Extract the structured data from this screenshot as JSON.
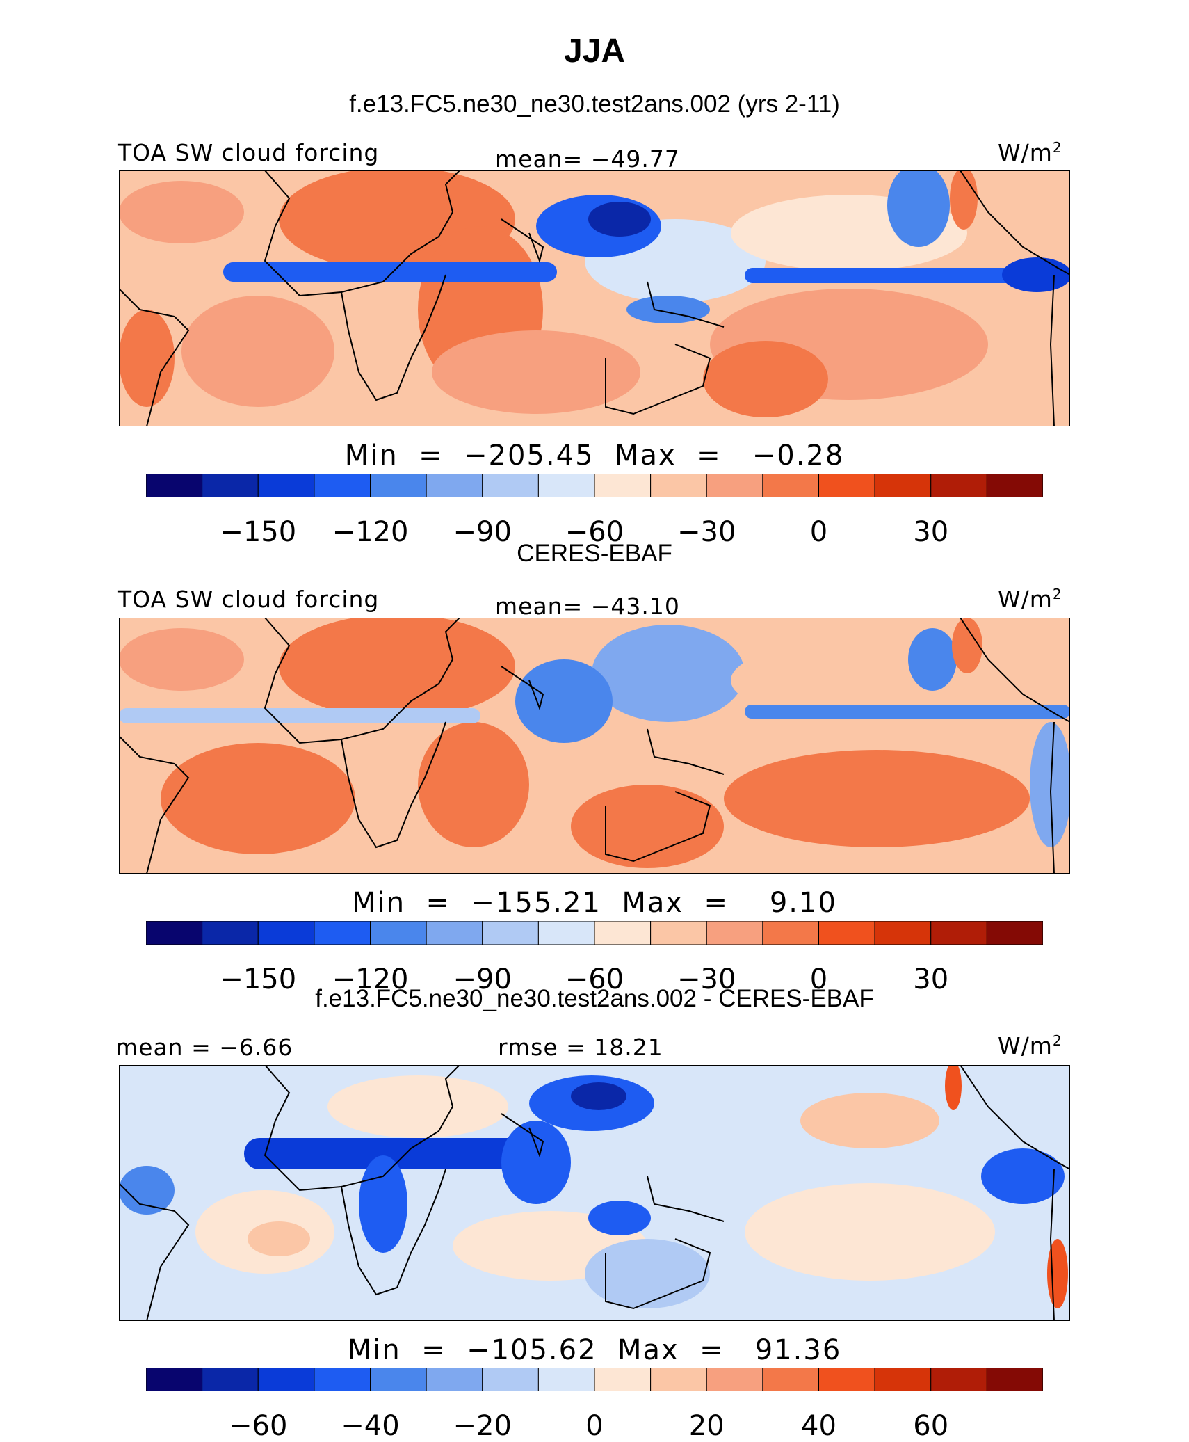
{
  "page": {
    "title": "JJA",
    "case_subtitle": "f.e13.FC5.ne30_ne30.test2ans.002 (yrs 2-11)"
  },
  "colors": {
    "palette": [
      "#08056e",
      "#0a27a8",
      "#0a3bd8",
      "#1e5cf2",
      "#4a86ec",
      "#7fa8ef",
      "#b0caf4",
      "#d8e6f9",
      "#fde6d4",
      "#fbc6a6",
      "#f7a07f",
      "#f37849",
      "#f0511e",
      "#d63409",
      "#b01d07",
      "#840a05"
    ],
    "coastline": "#000000"
  },
  "panels": [
    {
      "id": "model",
      "header": "",
      "label_left": "TOA SW cloud forcing",
      "label_center": "mean=  −49.77",
      "units": "W/m",
      "units_sup": "2",
      "min_max": "Min  =  −205.45  Max  =   −0.28",
      "ticks": [
        "−150",
        "−120",
        "−90",
        "−60",
        "−30",
        "0",
        "30"
      ]
    },
    {
      "id": "obs",
      "header": "CERES-EBAF",
      "label_left": "TOA SW cloud forcing",
      "label_center": "mean=  −43.10",
      "units": "W/m",
      "units_sup": "2",
      "min_max": "Min  =  −155.21  Max  =    9.10",
      "ticks": [
        "−150",
        "−120",
        "−90",
        "−60",
        "−30",
        "0",
        "30"
      ]
    },
    {
      "id": "diff",
      "header": "f.e13.FC5.ne30_ne30.test2ans.002 - CERES-EBAF",
      "label_left": "mean  =   −6.66",
      "label_center": "rmse  =   18.21",
      "units": "W/m",
      "units_sup": "2",
      "min_max": "Min  =  −105.62  Max  =   91.36",
      "ticks": [
        "−60",
        "−40",
        "−20",
        "0",
        "20",
        "40",
        "60"
      ]
    }
  ]
}
